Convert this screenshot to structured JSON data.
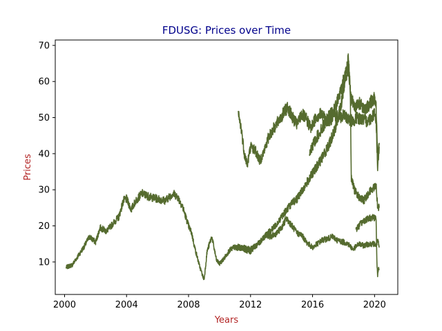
{
  "chart_data": {
    "type": "line",
    "title": "FDUSG: Prices over Time",
    "xlabel": "Years",
    "ylabel": "Prices",
    "xlim": [
      1999.4,
      2021.5
    ],
    "ylim": [
      1.0,
      71.5
    ],
    "xticks": [
      2000,
      2004,
      2008,
      2012,
      2016,
      2020
    ],
    "xtick_labels": [
      "2000",
      "2004",
      "2008",
      "2012",
      "2016",
      "2020"
    ],
    "yticks": [
      10,
      20,
      30,
      40,
      50,
      60,
      70
    ],
    "ytick_labels": [
      "10",
      "20",
      "30",
      "40",
      "50",
      "60",
      "70"
    ],
    "grid": false,
    "legend": "none",
    "colors": {
      "line": "#556b2f",
      "title": "#00008b",
      "axis_label": "#b22222"
    },
    "series": [
      {
        "x": [
          2000.1,
          2000.5,
          2001.0,
          2001.3,
          2001.6,
          2002.0,
          2002.3,
          2002.7,
          2003.0,
          2003.5,
          2003.8,
          2004.0,
          2004.3,
          2004.6,
          2005.0,
          2005.5,
          2006.0,
          2006.5,
          2007.0,
          2007.3,
          2007.6,
          2008.0,
          2008.2,
          2008.4,
          2008.7,
          2009.0,
          2009.2,
          2009.5,
          2009.8,
          2010.0,
          2010.3,
          2010.6,
          2010.9,
          2011.2,
          2011.5,
          2011.8,
          2012.0,
          2012.3,
          2012.6,
          2013.0,
          2013.3,
          2013.7,
          2014.0,
          2014.3,
          2014.6,
          2015.0,
          2015.3,
          2015.6,
          2016.0,
          2016.3,
          2016.6,
          2017.0,
          2017.3,
          2017.6,
          2018.0,
          2018.3,
          2018.6,
          2019.0,
          2019.3,
          2019.6,
          2020.0,
          2020.1,
          2020.2,
          2020.3
        ],
        "values": [
          8.5,
          9.2,
          12.5,
          14.5,
          17.0,
          15.5,
          19.5,
          18.5,
          20.0,
          22.5,
          27.0,
          27.5,
          24.5,
          27.0,
          29.0,
          28.0,
          27.5,
          27.0,
          29.0,
          28.0,
          25.5,
          20.0,
          18.0,
          14.0,
          9.0,
          5.0,
          13.0,
          17.0,
          10.5,
          9.5,
          11.0,
          13.0,
          14.0,
          14.2,
          13.8,
          13.0,
          12.8,
          14.5,
          15.5,
          17.5,
          17.0,
          18.0,
          19.5,
          22.0,
          20.5,
          18.0,
          17.5,
          15.5,
          14.0,
          15.0,
          16.0,
          16.5,
          17.0,
          16.0,
          15.5,
          15.0,
          13.5,
          15.0,
          14.5,
          15.0,
          15.0,
          14.5,
          16.0,
          14.0
        ]
      },
      {
        "x": [
          2011.2,
          2011.4,
          2011.6,
          2011.8,
          2012.0,
          2012.3,
          2012.6,
          2012.9,
          2013.2,
          2013.5,
          2013.8,
          2014.1,
          2014.4,
          2014.7,
          2015.0,
          2015.3,
          2015.6,
          2015.9,
          2016.2,
          2016.5,
          2016.8,
          2017.1,
          2017.4,
          2017.7,
          2018.0,
          2018.2,
          2018.4,
          2018.6,
          2018.9,
          2019.2,
          2019.5,
          2019.8,
          2020.0,
          2020.1,
          2020.2,
          2020.3
        ],
        "values": [
          51.0,
          47.0,
          40.0,
          37.0,
          42.0,
          41.0,
          38.0,
          41.0,
          45.0,
          47.0,
          49.0,
          51.0,
          53.0,
          50.0,
          48.0,
          51.0,
          49.5,
          47.0,
          50.0,
          51.0,
          50.0,
          49.0,
          51.0,
          50.0,
          50.5,
          50.0,
          49.5,
          49.0,
          50.0,
          49.5,
          49.0,
          50.0,
          51.5,
          49.0,
          36.0,
          42.0
        ]
      },
      {
        "x": [
          2011.0,
          2011.5,
          2012.0,
          2012.5,
          2013.0,
          2013.5,
          2014.0,
          2014.5,
          2015.0,
          2015.5,
          2016.0,
          2016.5,
          2017.0,
          2017.3,
          2017.6,
          2017.9,
          2018.1,
          2018.3,
          2018.4,
          2018.45,
          2018.5,
          2018.7,
          2019.0,
          2019.3,
          2019.6,
          2019.9,
          2020.1,
          2020.2,
          2020.3
        ],
        "values": [
          13.5,
          14.0,
          13.5,
          15.0,
          17.5,
          19.5,
          22.5,
          25.5,
          27.5,
          31.0,
          34.5,
          38.0,
          42.0,
          45.0,
          49.0,
          55.0,
          61.0,
          64.0,
          60.0,
          52.0,
          33.0,
          30.0,
          28.0,
          27.0,
          29.0,
          30.5,
          31.5,
          25.0,
          25.0
        ]
      },
      {
        "x": [
          2015.8,
          2016.2,
          2016.6,
          2017.0,
          2017.4,
          2017.8,
          2018.1,
          2018.3,
          2018.5,
          2018.8,
          2019.1,
          2019.4,
          2019.7,
          2020.0,
          2020.1,
          2020.2,
          2020.3
        ],
        "values": [
          40.0,
          44.0,
          47.0,
          50.0,
          52.0,
          57.0,
          62.0,
          66.0,
          55.0,
          53.0,
          54.0,
          52.0,
          54.0,
          55.5,
          53.0,
          40.0,
          43.0
        ]
      },
      {
        "x": [
          2018.8,
          2019.0,
          2019.3,
          2019.6,
          2019.9,
          2020.1,
          2020.15,
          2020.2,
          2020.25,
          2020.3
        ],
        "values": [
          19.0,
          20.0,
          21.5,
          22.0,
          22.5,
          22.0,
          10.0,
          6.0,
          8.5,
          8.0
        ]
      }
    ]
  }
}
